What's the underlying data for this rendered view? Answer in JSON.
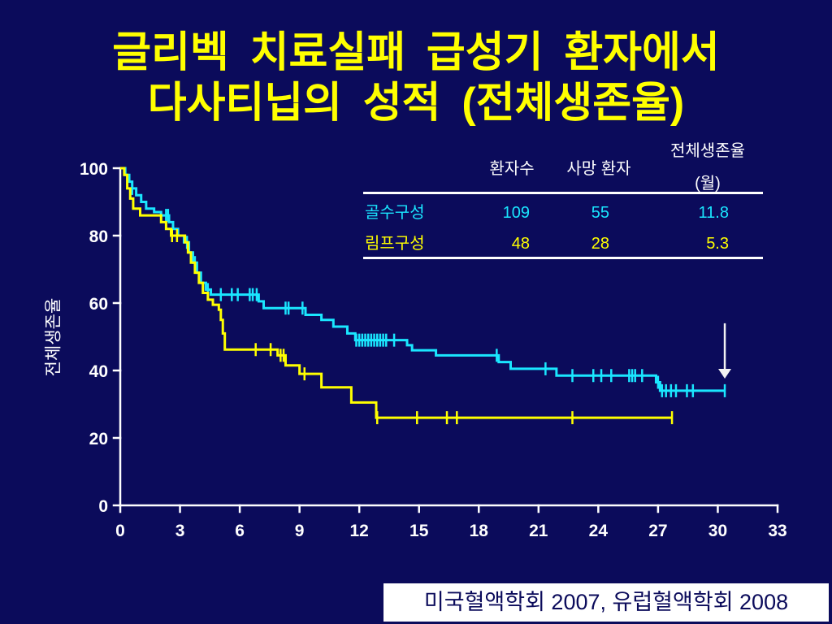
{
  "slide": {
    "title_line1": "글리벡 치료실패 급성기 환자에서",
    "title_line2": "다사티닙의 성적 (전체생존율)",
    "background_color": "#0b0b5b",
    "title_color": "#ffff00"
  },
  "summary_table": {
    "header_patients": "환자수",
    "header_deaths": "사망 환자",
    "header_os": "전체생존율",
    "header_os_unit": "(월)",
    "rows": [
      {
        "patients": 109,
        "deaths": 55,
        "os_months": 11.8
      },
      {
        "patients": 48,
        "deaths": 28,
        "os_months": 5.3
      }
    ]
  },
  "source": "미국혈액학회 2007, 유럽혈액학회 2008",
  "chart_data": {
    "type": "line",
    "line_shape": "step",
    "ylabel": "전체생존율",
    "xlim": [
      0,
      33
    ],
    "ylim": [
      0,
      100
    ],
    "xticks": [
      0,
      3,
      6,
      9,
      12,
      15,
      18,
      21,
      24,
      27,
      30,
      33
    ],
    "yticks": [
      0,
      20,
      40,
      60,
      80,
      100
    ],
    "grid": false,
    "series": [
      {
        "name": "골수구성",
        "color": "#1ae6ff",
        "x": [
          0,
          0.25,
          0.45,
          0.6,
          0.8,
          1.05,
          1.3,
          1.7,
          2.05,
          2.45,
          2.65,
          2.9,
          3.2,
          3.45,
          3.65,
          3.85,
          4.05,
          4.3,
          4.55,
          6.95,
          7.2,
          9.3,
          10.1,
          10.7,
          11.4,
          11.8,
          14.4,
          14.65,
          15.85,
          19.0,
          19.6,
          21.9,
          26.9,
          27.1
        ],
        "y": [
          100,
          98,
          96,
          94,
          92,
          90,
          88,
          87,
          86,
          84,
          82,
          80,
          78,
          75,
          72,
          69,
          66,
          64,
          62.5,
          60.5,
          58.5,
          56.5,
          55,
          53,
          51,
          49,
          47.5,
          46,
          44.5,
          42.5,
          40.5,
          38.5,
          36.5,
          34
        ],
        "end_x": 30.35,
        "censored_x": [
          0.6,
          2.3,
          2.4,
          3.35,
          3.75,
          4.4,
          5.05,
          5.6,
          5.9,
          6.5,
          6.65,
          6.85,
          8.3,
          8.45,
          9.15,
          11.85,
          12.0,
          12.15,
          12.3,
          12.45,
          12.6,
          12.75,
          12.9,
          13.05,
          13.2,
          13.35,
          13.75,
          18.9,
          21.35,
          22.7,
          23.75,
          24.15,
          24.65,
          25.55,
          25.7,
          25.85,
          26.2,
          27.0,
          27.2,
          27.4,
          27.65,
          27.9,
          28.45,
          28.75,
          30.35
        ]
      },
      {
        "name": "림프구성",
        "color": "#ffff00",
        "x": [
          0,
          0.2,
          0.35,
          0.5,
          0.65,
          1.0,
          2.05,
          2.3,
          2.55,
          3.25,
          3.4,
          3.55,
          3.75,
          3.95,
          4.15,
          4.4,
          4.65,
          4.95,
          5.05,
          5.15,
          5.25,
          7.9,
          8.3,
          9.0,
          10.1,
          11.6,
          12.85
        ],
        "y": [
          100,
          98,
          94,
          91,
          88,
          86,
          84,
          82,
          80,
          78,
          75,
          72,
          69,
          66,
          63,
          61,
          59.5,
          58,
          55,
          51,
          46.2,
          44.5,
          41.5,
          39,
          35,
          30.5,
          26
        ],
        "end_x": 27.7,
        "censored_x": [
          2.6,
          2.85,
          6.8,
          7.55,
          8.05,
          8.2,
          9.25,
          12.9,
          14.9,
          16.4,
          16.9,
          22.7,
          27.7
        ]
      }
    ],
    "annotations": [
      {
        "type": "arrow-down",
        "x": 30.35,
        "y_from": 54,
        "y_to": 37.6
      }
    ]
  }
}
